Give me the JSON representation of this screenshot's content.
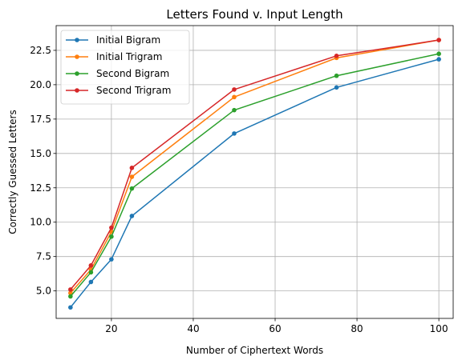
{
  "chart_data": {
    "type": "line",
    "title": "Letters Found v. Input Length",
    "xlabel": "Number of Ciphertext Words",
    "ylabel": "Correctly Guessed Letters",
    "xlim": [
      6.5,
      103.5
    ],
    "ylim": [
      3.0,
      24.3
    ],
    "xticks": [
      20,
      40,
      60,
      80,
      100
    ],
    "xtick_labels": [
      "20",
      "40",
      "60",
      "80",
      "100"
    ],
    "yticks": [
      5.0,
      7.5,
      10.0,
      12.5,
      15.0,
      17.5,
      20.0,
      22.5
    ],
    "ytick_labels": [
      "5.0",
      "7.5",
      "10.0",
      "12.5",
      "15.0",
      "17.5",
      "20.0",
      "22.5"
    ],
    "grid": true,
    "legend_position": "top-left",
    "x": [
      10,
      15,
      20,
      25,
      50,
      75,
      100
    ],
    "series": [
      {
        "name": "Initial Bigram",
        "color": "#1f77b4",
        "values": [
          3.8,
          5.65,
          7.3,
          10.45,
          16.45,
          19.8,
          21.85
        ]
      },
      {
        "name": "Initial Trigram",
        "color": "#ff7f0e",
        "values": [
          4.85,
          6.55,
          9.3,
          13.3,
          19.1,
          21.95,
          23.25
        ]
      },
      {
        "name": "Second Bigram",
        "color": "#2ca02c",
        "values": [
          4.6,
          6.35,
          8.95,
          12.45,
          18.15,
          20.65,
          22.25
        ]
      },
      {
        "name": "Second Trigram",
        "color": "#d62728",
        "values": [
          5.1,
          6.85,
          9.6,
          13.95,
          19.65,
          22.1,
          23.25
        ]
      }
    ]
  }
}
